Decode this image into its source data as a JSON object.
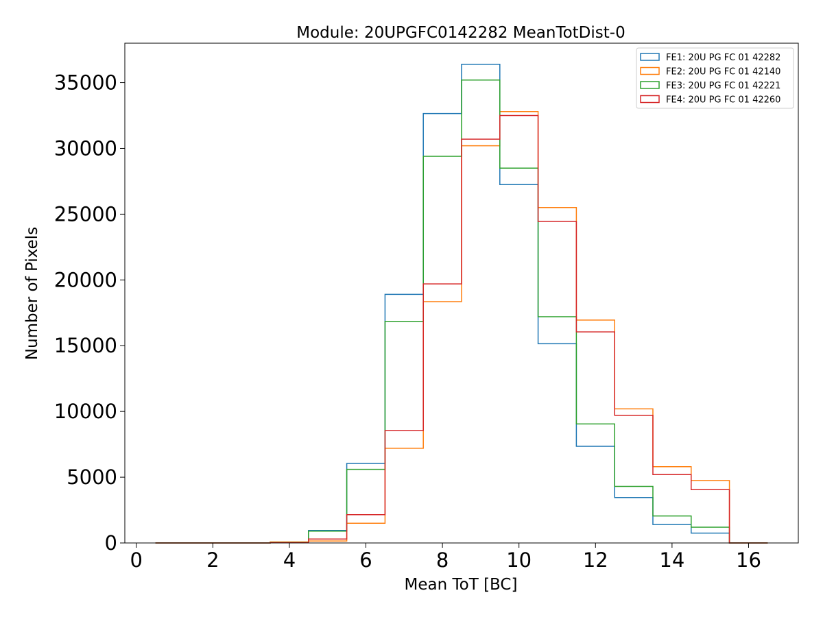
{
  "chart_data": {
    "type": "step-histogram",
    "title": "Module: 20UPGFC0142282 MeanTotDist-0",
    "xlabel": "Mean ToT [BC]",
    "ylabel": "Number of Pixels",
    "xlim": [
      -0.3,
      17.3
    ],
    "ylim": [
      0,
      38000
    ],
    "xticks": [
      0,
      2,
      4,
      6,
      8,
      10,
      12,
      14,
      16
    ],
    "yticks": [
      0,
      5000,
      10000,
      15000,
      20000,
      25000,
      30000,
      35000
    ],
    "bin_edges": [
      0.5,
      1.5,
      2.5,
      3.5,
      4.5,
      5.5,
      6.5,
      7.5,
      8.5,
      9.5,
      10.5,
      11.5,
      12.5,
      13.5,
      14.5,
      15.5,
      16.5
    ],
    "grid": false,
    "legend_position": "top-right",
    "series": [
      {
        "name": "FE1: 20U PG FC 01 42282",
        "color": "#1f77b4",
        "values": [
          0,
          0,
          0,
          50,
          950,
          6050,
          18900,
          32650,
          36400,
          27250,
          15150,
          7350,
          3450,
          1400,
          750,
          0
        ]
      },
      {
        "name": "FE2: 20U PG FC 01 42140",
        "color": "#ff7f0e",
        "values": [
          0,
          0,
          0,
          80,
          150,
          1500,
          7200,
          18350,
          30200,
          32800,
          25500,
          16950,
          10200,
          5800,
          4750,
          0
        ]
      },
      {
        "name": "FE3: 20U PG FC 01 42221",
        "color": "#2ca02c",
        "values": [
          0,
          0,
          0,
          30,
          900,
          5600,
          16850,
          29400,
          35200,
          28500,
          17200,
          9050,
          4300,
          2050,
          1200,
          0
        ]
      },
      {
        "name": "FE4: 20U PG FC 01 42260",
        "color": "#d62728",
        "values": [
          0,
          0,
          0,
          20,
          300,
          2150,
          8550,
          19700,
          30700,
          32500,
          24450,
          16050,
          9700,
          5200,
          4050,
          0
        ]
      }
    ]
  }
}
